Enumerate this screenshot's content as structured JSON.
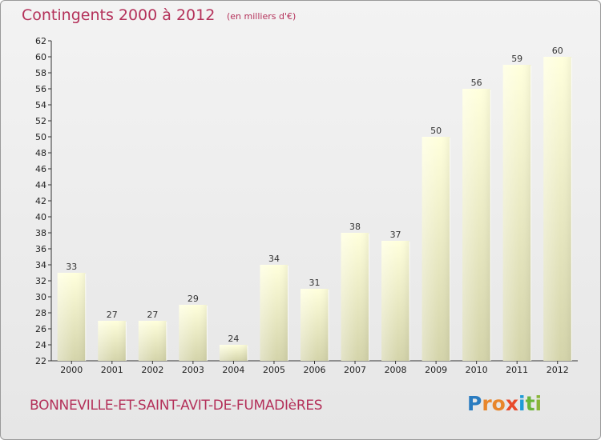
{
  "header": {
    "title": "Contingents 2000 à 2012",
    "subtitle": "(en milliers d'€)"
  },
  "footer": {
    "commune": "BONNEVILLE-ET-SAINT-AVIT-DE-FUMADIèRES",
    "brand": {
      "letters": [
        "P",
        "r",
        "o",
        "x",
        "i",
        "t",
        "i"
      ],
      "colors": [
        "#2a7cc0",
        "#e8862b",
        "#e8862b",
        "#e84a2b",
        "#1f9bd6",
        "#6ab53a",
        "#8ab53a"
      ]
    }
  },
  "chart_data": {
    "type": "bar",
    "categories": [
      "2000",
      "2001",
      "2002",
      "2003",
      "2004",
      "2005",
      "2006",
      "2007",
      "2008",
      "2009",
      "2010",
      "2011",
      "2012"
    ],
    "values": [
      33,
      27,
      27,
      29,
      24,
      34,
      31,
      38,
      37,
      50,
      56,
      59,
      60
    ],
    "ylim": [
      22,
      62
    ],
    "yticks": [
      22,
      24,
      26,
      28,
      30,
      32,
      34,
      36,
      38,
      40,
      42,
      44,
      46,
      48,
      50,
      52,
      54,
      56,
      58,
      60,
      62
    ],
    "grid": false,
    "data_labels": true,
    "colors": {
      "bar_top": "#ffffdc",
      "bar_bottom": "#d4d4aa",
      "axis": "#333333",
      "tick_text": "#222222",
      "label_text": "#333333"
    }
  }
}
